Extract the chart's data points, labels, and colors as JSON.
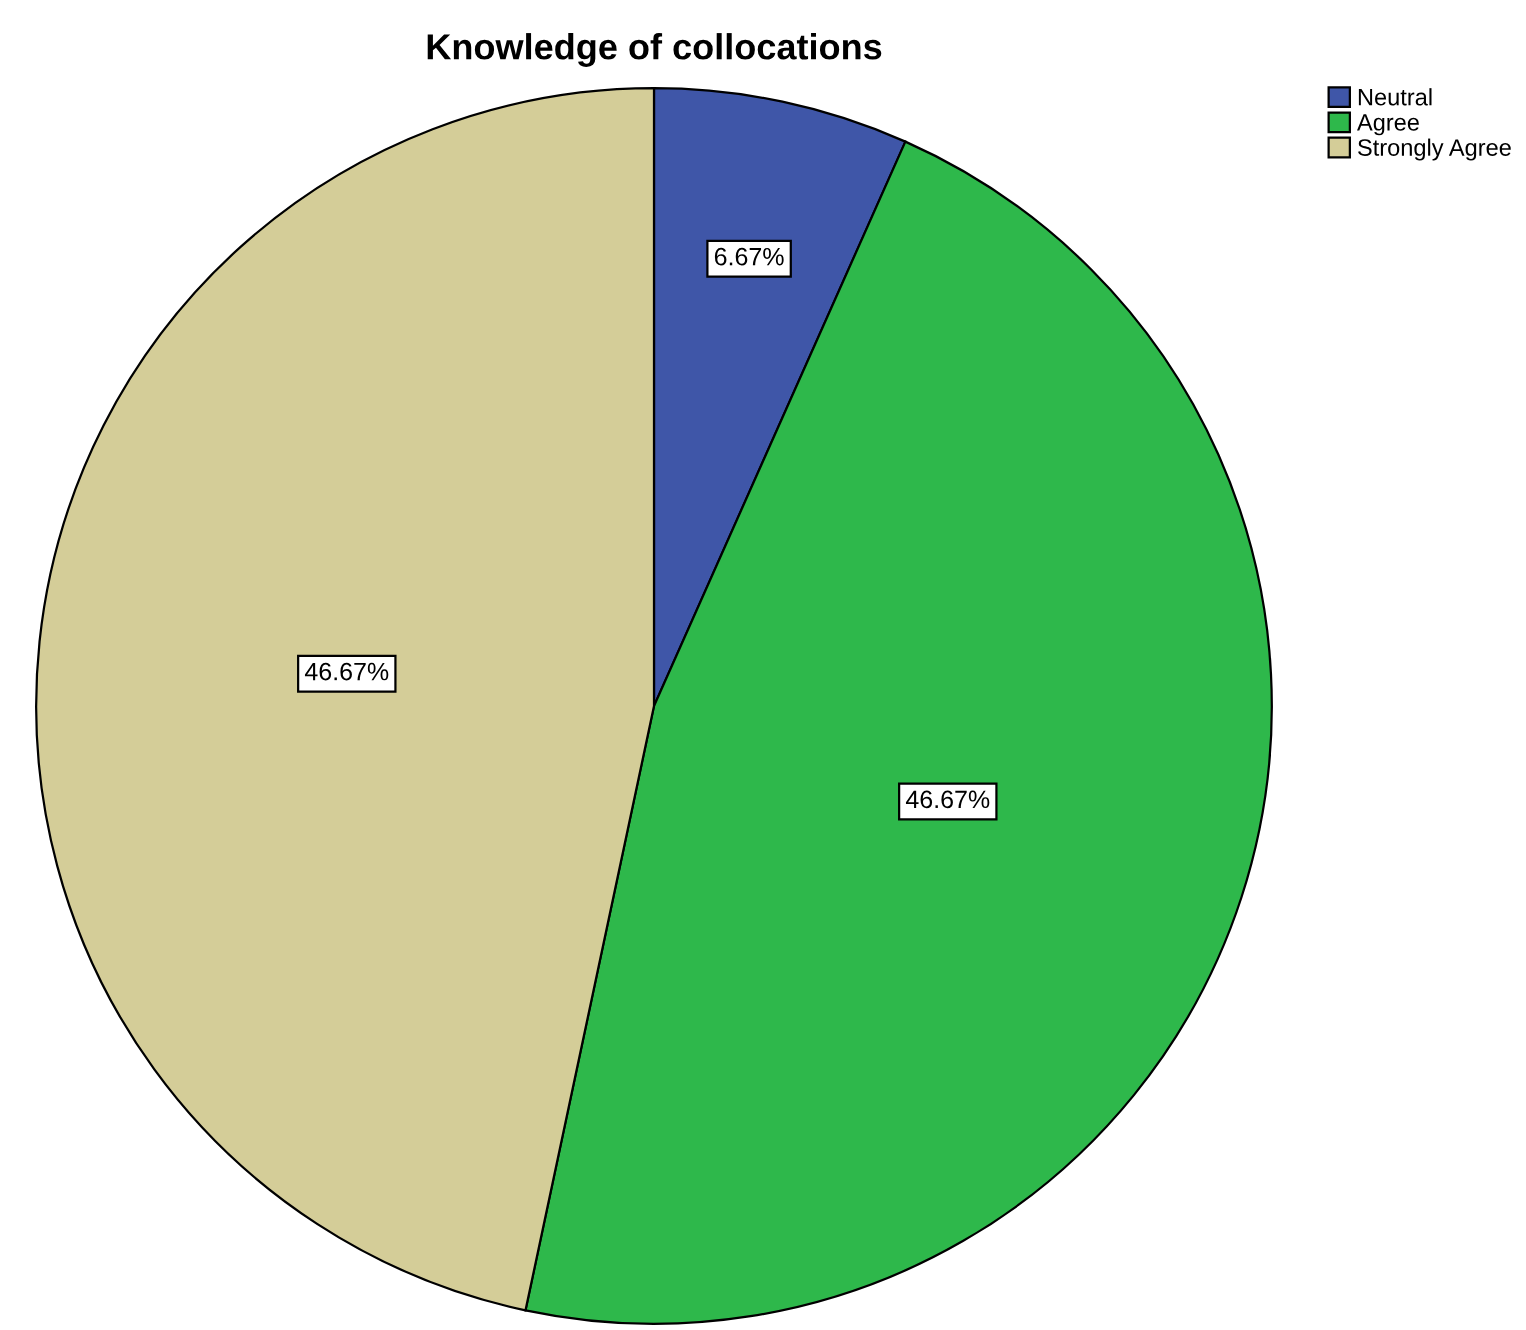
{
  "chart_data": {
    "type": "pie",
    "title": "Knowledge of collocations",
    "categories": [
      "Neutral",
      "Agree",
      "Strongly Agree"
    ],
    "values": [
      6.67,
      46.67,
      46.67
    ],
    "colors": [
      "#3f56a8",
      "#2eb84b",
      "#d4cd98"
    ],
    "value_labels": [
      "6.67%",
      "46.67%",
      "46.67%"
    ],
    "legend": "top right"
  }
}
